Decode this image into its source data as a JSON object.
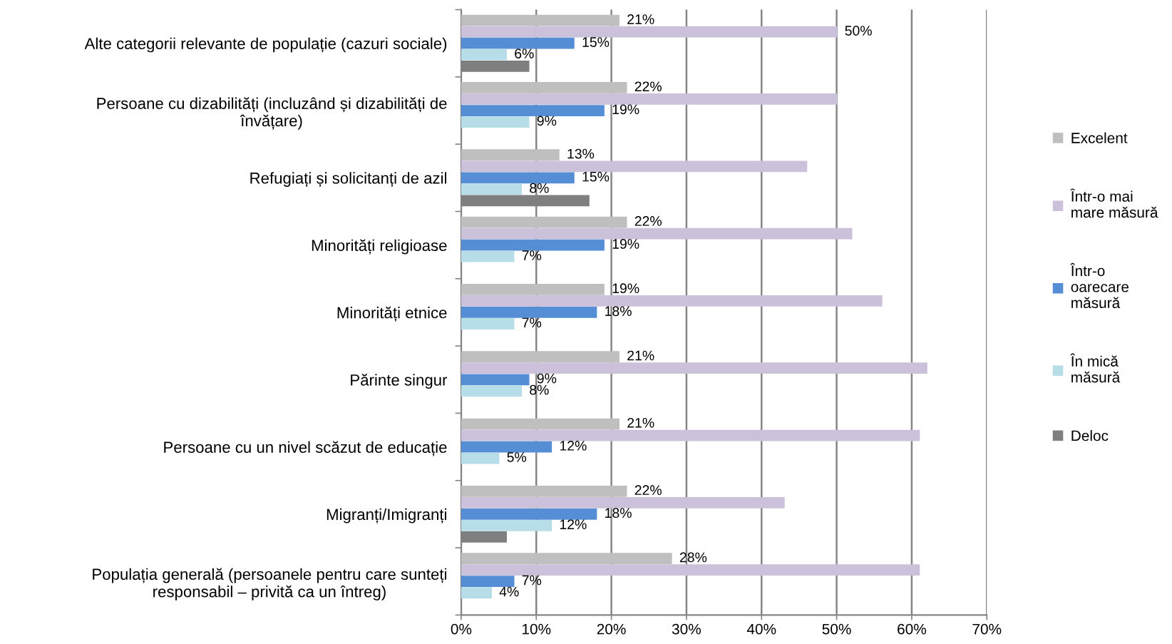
{
  "chart_data": {
    "type": "bar",
    "orientation": "horizontal",
    "categories": [
      "Alte categorii relevante de populație (cazuri sociale)",
      "Persoane cu dizabilități (incluzând și dizabilități de\nînvățare)",
      "Refugiați și solicitanți de azil",
      "Minorități religioase",
      "Minorități etnice",
      "Părinte singur",
      "Persoane cu un nivel scăzut de educație",
      "Migranți/Imigranți",
      "Populația generală (persoanele pentru care sunteți\nresponsabil – privită ca un întreg)"
    ],
    "series": [
      {
        "name": "Excelent",
        "color": "#bfbfbf",
        "values": [
          21,
          22,
          13,
          22,
          19,
          21,
          21,
          22,
          28
        ],
        "value_labels": [
          "21%",
          "22%",
          "13%",
          "22%",
          "19%",
          "21%",
          "21%",
          "22%",
          "28%"
        ]
      },
      {
        "name": "Într-o mai\nmare măsură",
        "color": "#ccc1da",
        "values": [
          50,
          50,
          46,
          52,
          56,
          62,
          61,
          43,
          61
        ],
        "value_labels": [
          "50%",
          null,
          null,
          null,
          null,
          null,
          null,
          null,
          null
        ]
      },
      {
        "name": "Într-o\noarecare\nmăsură",
        "color": "#558ed5",
        "values": [
          15,
          19,
          15,
          19,
          18,
          9,
          12,
          18,
          7
        ],
        "value_labels": [
          "15%",
          "19%",
          "15%",
          "19%",
          "18%",
          "9%",
          "12%",
          "18%",
          "7%"
        ]
      },
      {
        "name": "În mică\nmăsură",
        "color": "#b7dee8",
        "values": [
          6,
          9,
          8,
          7,
          7,
          8,
          5,
          12,
          4
        ],
        "value_labels": [
          "6%",
          "9%",
          "8%",
          "7%",
          "7%",
          "8%",
          "5%",
          "12%",
          "4%"
        ]
      },
      {
        "name": "Deloc",
        "color": "#7f7f7f",
        "values": [
          9,
          0,
          17,
          0,
          0,
          0,
          0,
          6,
          0
        ]
      }
    ],
    "xlim": [
      0,
      70
    ],
    "xticks": [
      {
        "value": 0,
        "label": "0%"
      },
      {
        "value": 10,
        "label": "10%"
      },
      {
        "value": 20,
        "label": "20%"
      },
      {
        "value": 30,
        "label": "30%"
      },
      {
        "value": 40,
        "label": "40%"
      },
      {
        "value": 50,
        "label": "50%"
      },
      {
        "value": 60,
        "label": "60%"
      },
      {
        "value": 70,
        "label": "70%"
      }
    ],
    "grid": "x",
    "legend": "right"
  }
}
